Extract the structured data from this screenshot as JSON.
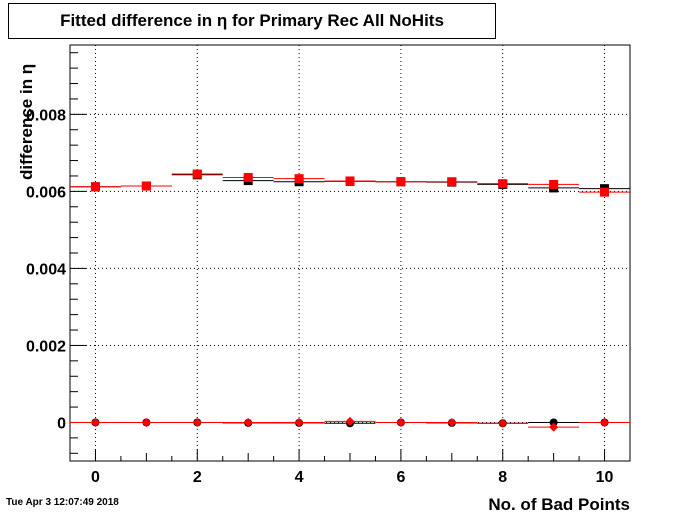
{
  "title": "Fitted difference in  η for Primary Rec All NoHits",
  "timestamp": "Tue Apr  3 12:07:49 2018",
  "chart_data": {
    "type": "scatter",
    "xlabel": "No. of Bad Points",
    "ylabel": "difference in  η",
    "xlim": [
      -0.5,
      10.5
    ],
    "ylim": [
      -0.001,
      0.0098
    ],
    "x_ticks": [
      0,
      2,
      4,
      6,
      8,
      10
    ],
    "x_tick_labels": [
      "0",
      "2",
      "4",
      "6",
      "8",
      "10"
    ],
    "y_ticks": [
      0,
      0.002,
      0.004,
      0.006,
      0.008
    ],
    "y_tick_labels": [
      "0",
      "0.002",
      "0.004",
      "0.006",
      "0.008"
    ],
    "grid": true,
    "series": [
      {
        "marker": "square",
        "color": "#000000",
        "x": [
          0,
          1,
          2,
          3,
          4,
          5,
          6,
          7,
          8,
          9,
          10
        ],
        "y": [
          0.00612,
          0.00614,
          0.00643,
          0.00628,
          0.00625,
          0.00626,
          0.00625,
          0.00624,
          0.00618,
          0.00609,
          0.00607
        ]
      },
      {
        "marker": "square",
        "color": "#ff0000",
        "x": [
          0,
          1,
          2,
          3,
          4,
          5,
          6,
          7,
          8,
          9,
          10
        ],
        "y": [
          0.00612,
          0.00614,
          0.00645,
          0.00636,
          0.00633,
          0.00627,
          0.00625,
          0.00625,
          0.0062,
          0.00618,
          0.00598
        ]
      },
      {
        "marker": "circle",
        "color": "#000000",
        "x": [
          0,
          1,
          2,
          3,
          4,
          5,
          6,
          7,
          8,
          9,
          10
        ],
        "y": [
          0.0,
          0.0,
          0.0,
          -1e-05,
          -1e-05,
          -2e-05,
          0.0,
          -1e-05,
          -2e-05,
          0.0,
          0.0
        ]
      },
      {
        "marker": "diamond",
        "color": "#ff0000",
        "x": [
          0,
          1,
          2,
          3,
          4,
          5,
          6,
          7,
          8,
          9,
          10
        ],
        "y": [
          0.0,
          0.0,
          0.0,
          0.0,
          0.0,
          3e-05,
          0.0,
          0.0,
          -2e-05,
          -0.00012,
          0.0
        ]
      }
    ]
  }
}
